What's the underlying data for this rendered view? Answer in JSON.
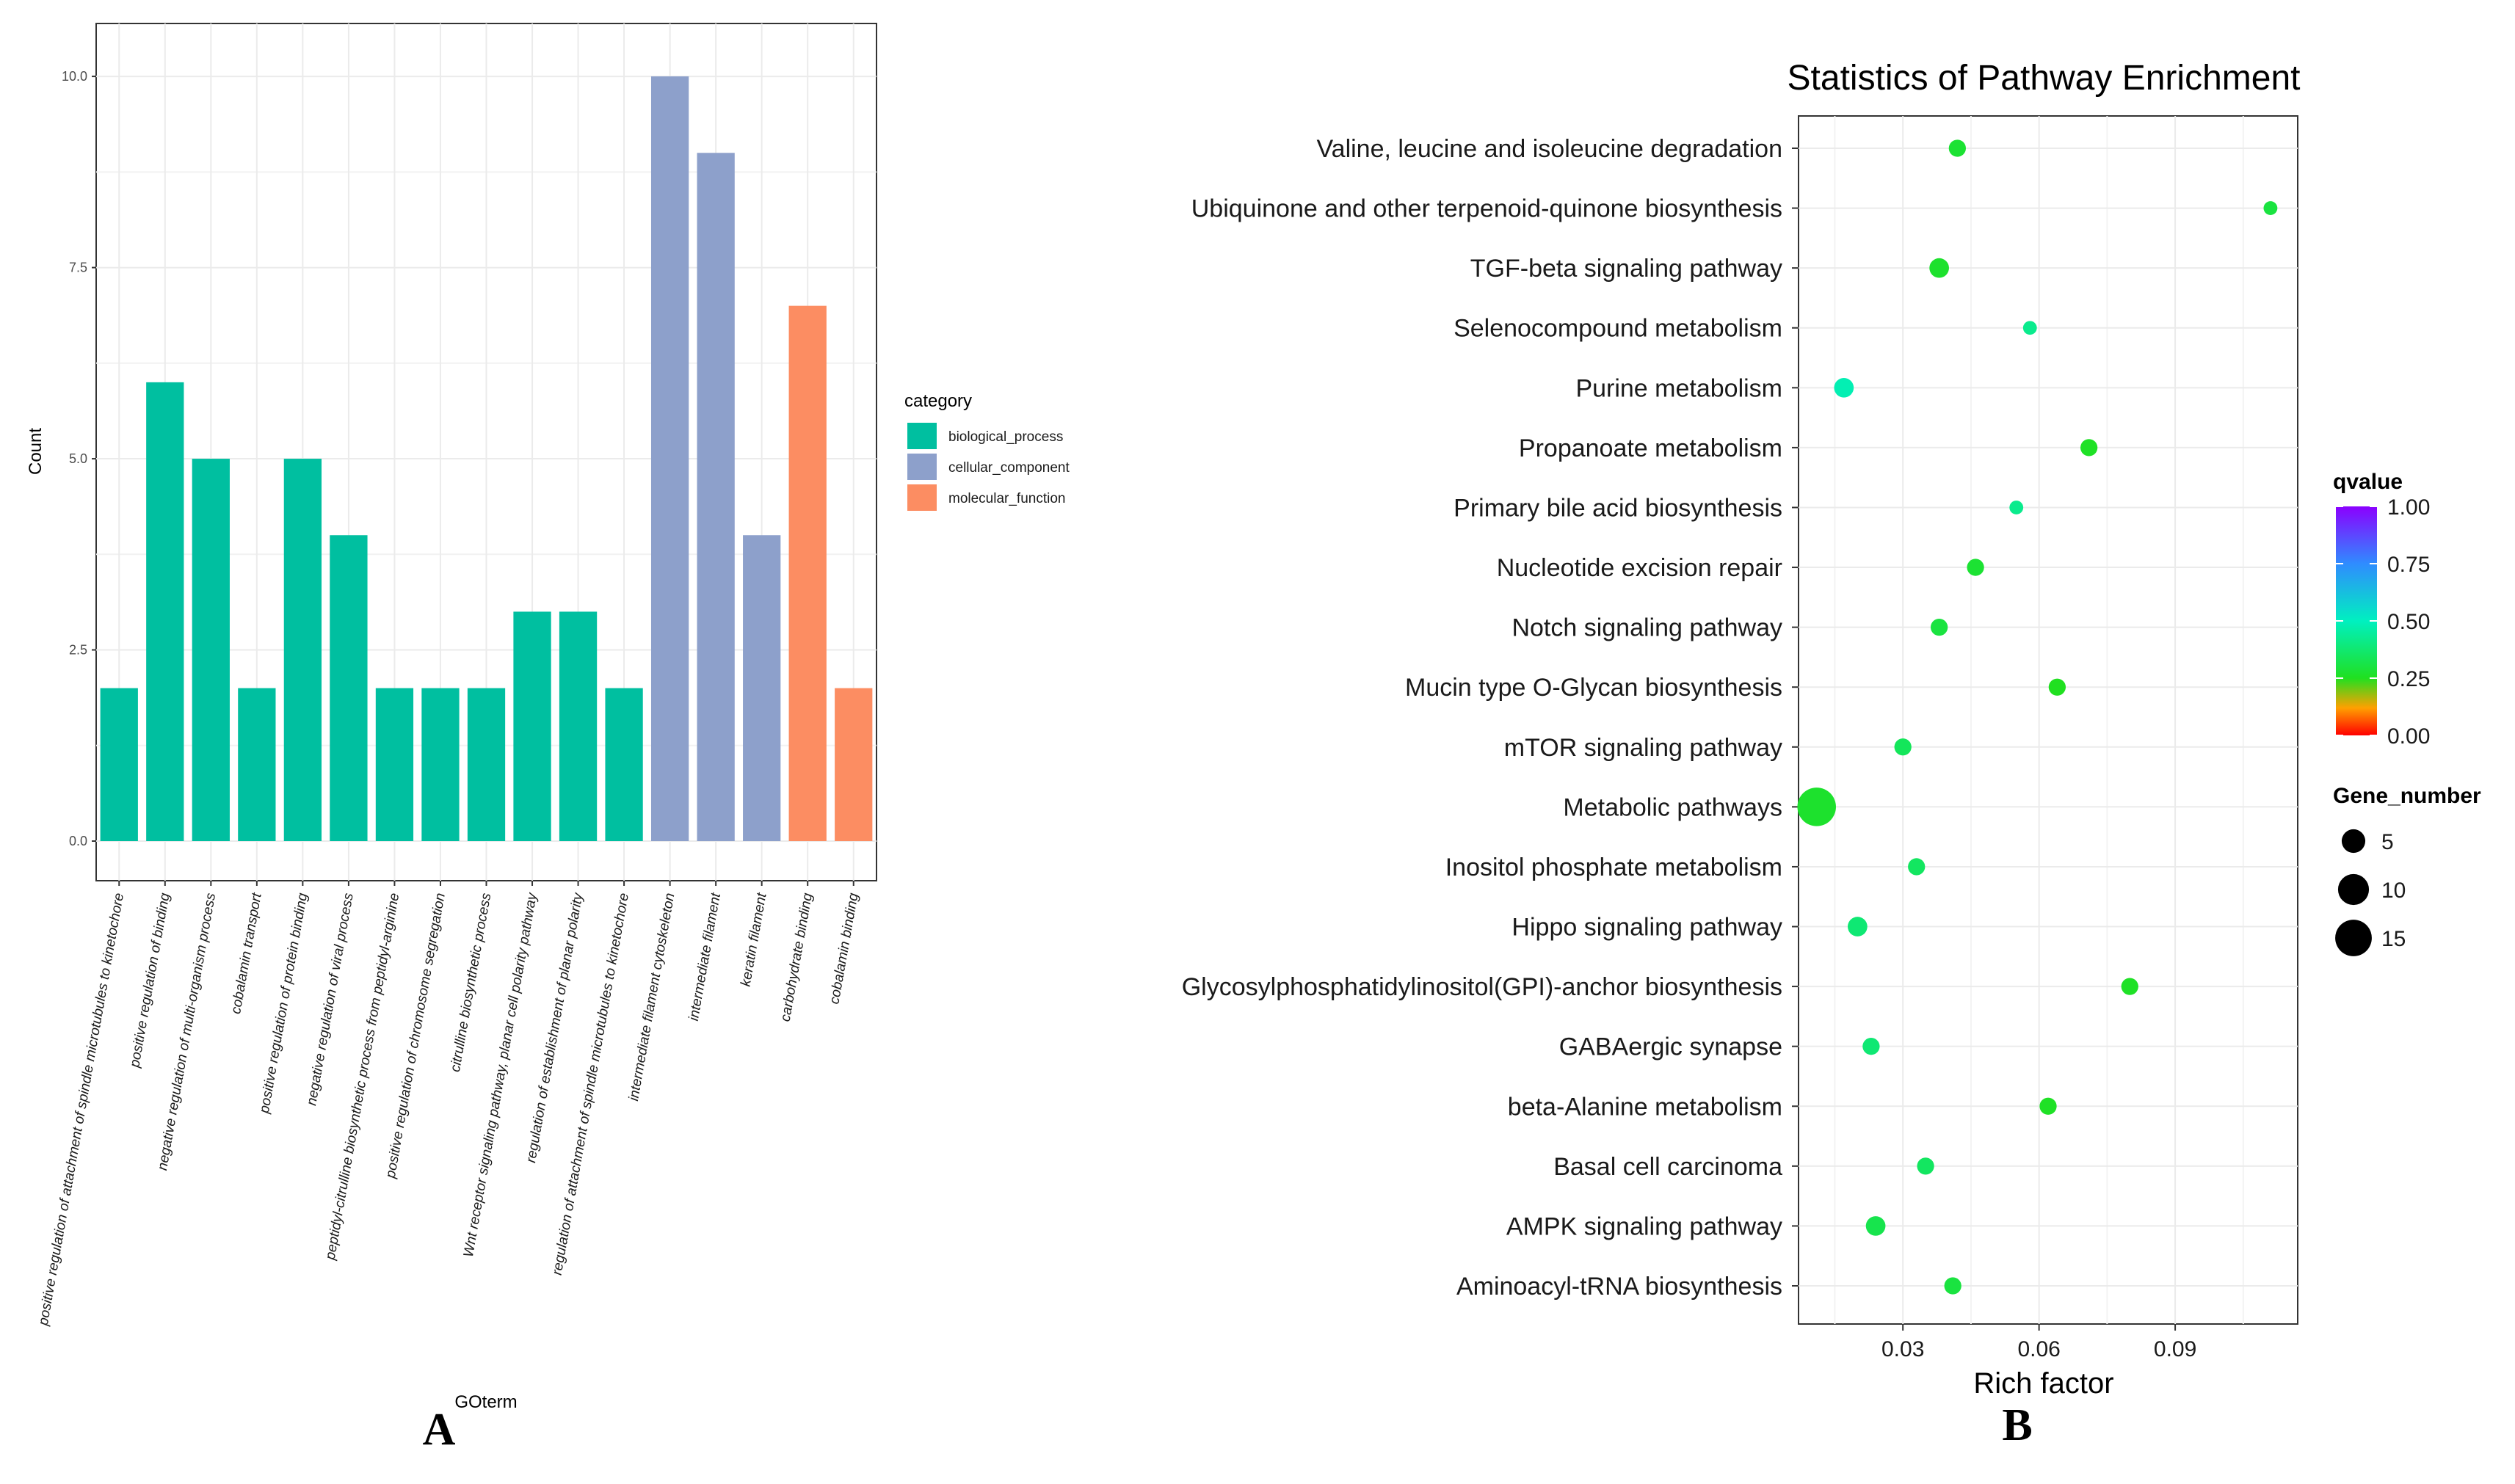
{
  "chart_data": [
    {
      "panel": "A",
      "type": "bar",
      "title": "",
      "xlabel": "GOterm",
      "ylabel": "Count",
      "ylim": [
        0,
        10.5
      ],
      "yticks": [
        "0.0",
        "2.5",
        "5.0",
        "7.5",
        "10.0"
      ],
      "ytick_values": [
        0,
        2.5,
        5,
        7.5,
        10
      ],
      "grid": true,
      "legend": {
        "title": "category",
        "position": "right",
        "entries": [
          {
            "name": "biological_process",
            "color": "#00BFA0"
          },
          {
            "name": "cellular_component",
            "color": "#8DA0CB"
          },
          {
            "name": "molecular_function",
            "color": "#FC8D62"
          }
        ]
      },
      "categories": [
        "positive regulation of attachment of spindle microtubules to kinetochore",
        "positive regulation of binding",
        "negative regulation of multi-organism process",
        "cobalamin transport",
        "positive regulation of protein binding",
        "negative regulation of viral process",
        "peptidyl-citrulline biosynthetic process from peptidyl-arginine",
        "positive regulation of chromosome segregation",
        "citrulline biosynthetic process",
        "Wnt receptor signaling pathway, planar cell polarity pathway",
        "regulation of establishment of planar polarity",
        "regulation of attachment of spindle microtubules to kinetochore",
        "intermediate filament cytoskeleton",
        "intermediate filament",
        "keratin filament",
        "carbohydrate binding",
        "cobalamin binding"
      ],
      "values": [
        2,
        6,
        5,
        2,
        5,
        4,
        2,
        2,
        2,
        3,
        3,
        2,
        10,
        9,
        4,
        7,
        2
      ],
      "bar_category": [
        "biological_process",
        "biological_process",
        "biological_process",
        "biological_process",
        "biological_process",
        "biological_process",
        "biological_process",
        "biological_process",
        "biological_process",
        "biological_process",
        "biological_process",
        "biological_process",
        "cellular_component",
        "cellular_component",
        "cellular_component",
        "molecular_function",
        "molecular_function"
      ]
    },
    {
      "panel": "B",
      "type": "scatter",
      "title": "Statistics of Pathway Enrichment",
      "xlabel": "Rich factor",
      "ylabel": "",
      "xlim": [
        0.007,
        0.117
      ],
      "xticks": [
        "0.03",
        "0.06",
        "0.09"
      ],
      "xtick_values": [
        0.03,
        0.06,
        0.09
      ],
      "grid": true,
      "pathways": [
        "Valine, leucine and isoleucine degradation",
        "Ubiquinone and other terpenoid-quinone biosynthesis",
        "TGF-beta signaling pathway",
        "Selenocompound metabolism",
        "Purine metabolism",
        "Propanoate metabolism",
        "Primary bile acid biosynthesis",
        "Nucleotide excision repair",
        "Notch signaling pathway",
        "Mucin type O-Glycan biosynthesis",
        "mTOR signaling pathway",
        "Metabolic pathways",
        "Inositol phosphate metabolism",
        "Hippo signaling pathway",
        "Glycosylphosphatidylinositol(GPI)-anchor biosynthesis",
        "GABAergic synapse",
        "beta-Alanine metabolism",
        "Basal cell carcinoma",
        "AMPK signaling pathway",
        "Aminoacyl-tRNA biosynthesis"
      ],
      "rich_factor": [
        0.042,
        0.111,
        0.038,
        0.058,
        0.017,
        0.071,
        0.055,
        0.046,
        0.038,
        0.064,
        0.03,
        0.011,
        0.033,
        0.02,
        0.08,
        0.023,
        0.062,
        0.035,
        0.024,
        0.041
      ],
      "gene_number": [
        2,
        1,
        3,
        1,
        3,
        2,
        1,
        2,
        2,
        2,
        2,
        17,
        2,
        3,
        2,
        2,
        2,
        2,
        3,
        2
      ],
      "qvalue": [
        0.28,
        0.3,
        0.27,
        0.42,
        0.48,
        0.26,
        0.42,
        0.28,
        0.3,
        0.25,
        0.34,
        0.27,
        0.35,
        0.38,
        0.26,
        0.38,
        0.26,
        0.35,
        0.32,
        0.3
      ],
      "color_legend": {
        "title": "qvalue",
        "labels": [
          "1.00",
          "0.75",
          "0.50",
          "0.25",
          "0.00"
        ],
        "label_values": [
          1.0,
          0.75,
          0.5,
          0.25,
          0.0
        ],
        "stops": [
          {
            "value": 1.0,
            "color": "#8B00FF"
          },
          {
            "value": 0.75,
            "color": "#2F8CFF"
          },
          {
            "value": 0.5,
            "color": "#00F0C0"
          },
          {
            "value": 0.25,
            "color": "#20E020"
          },
          {
            "value": 0.12,
            "color": "#FFA000"
          },
          {
            "value": 0.0,
            "color": "#FF0000"
          }
        ]
      },
      "size_legend": {
        "title": "Gene_number",
        "labels": [
          "5",
          "10",
          "15"
        ],
        "values": [
          5,
          10,
          15
        ]
      }
    }
  ],
  "panel_labels": {
    "a": "A",
    "b": "B"
  }
}
